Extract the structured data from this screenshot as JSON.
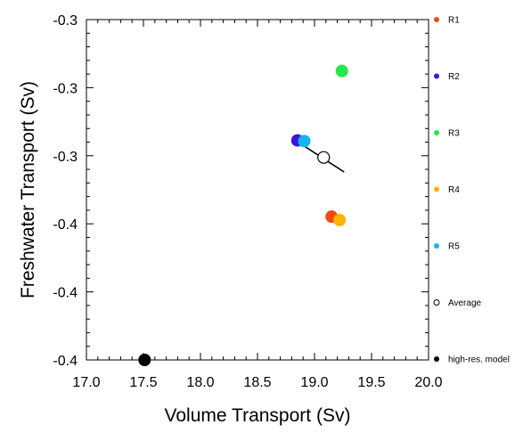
{
  "chart_data": {
    "type": "scatter",
    "xlabel": "Volume Transport (Sv)",
    "ylabel": "Freshwater Transport (Sv)",
    "xlim": [
      17.0,
      20.0
    ],
    "ylim": [
      -0.4,
      -0.3
    ],
    "x_ticks": [
      "17.0",
      "17.5",
      "18.0",
      "18.5",
      "19.0",
      "19.5",
      "20.0"
    ],
    "y_ticks": [
      "-0.4",
      "-0.4",
      "-0.4",
      "-0.3",
      "-0.3",
      "-0.3"
    ],
    "grid": false,
    "legend_position": "right",
    "series": [
      {
        "name": "R1",
        "color": "#f04a14",
        "marker": "filled-circle",
        "points": [
          {
            "x": 19.15,
            "y": -0.3579
          }
        ]
      },
      {
        "name": "R2",
        "color": "#3b16e0",
        "marker": "filled-circle",
        "points": [
          {
            "x": 18.85,
            "y": -0.3355
          }
        ]
      },
      {
        "name": "R3",
        "color": "#22e84a",
        "marker": "filled-circle",
        "points": [
          {
            "x": 19.24,
            "y": -0.3151
          }
        ]
      },
      {
        "name": "R4",
        "color": "#ffb300",
        "marker": "filled-circle",
        "points": [
          {
            "x": 19.22,
            "y": -0.3589
          }
        ]
      },
      {
        "name": "R5",
        "color": "#15b3f0",
        "marker": "filled-circle",
        "points": [
          {
            "x": 18.91,
            "y": -0.3357
          }
        ]
      },
      {
        "name": "Average",
        "color": "#000000",
        "marker": "open-circle",
        "points": [
          {
            "x": 19.08,
            "y": -0.3405
          }
        ]
      },
      {
        "name": "high-res. model",
        "color": "#000000",
        "marker": "filled-circle",
        "points": [
          {
            "x": 17.51,
            "y": -0.4
          }
        ]
      }
    ],
    "line_segment": {
      "from": {
        "x": 18.87,
        "y": -0.3363
      },
      "to": {
        "x": 19.26,
        "y": -0.3448
      }
    }
  }
}
